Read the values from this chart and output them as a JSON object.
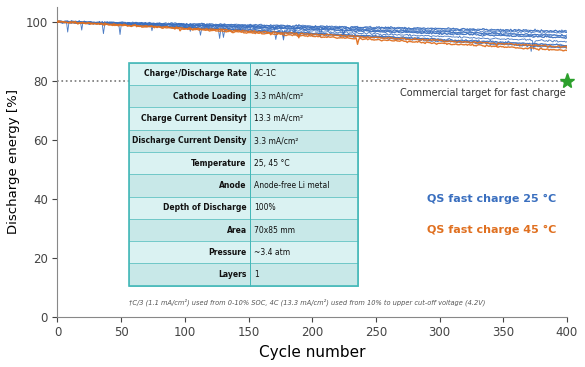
{
  "xlabel": "Cycle number",
  "ylabel": "Discharge energy [%]",
  "xlim": [
    0,
    400
  ],
  "ylim": [
    0,
    105
  ],
  "yticks": [
    0,
    20,
    40,
    60,
    80,
    100
  ],
  "xticks": [
    0,
    50,
    100,
    150,
    200,
    250,
    300,
    350,
    400
  ],
  "hline_y": 80,
  "hline_color": "#777777",
  "star_x": 400,
  "star_y": 80,
  "star_color": "#2ca02c",
  "annotation_text": "Commercial target for fast charge",
  "blue_color": "#3a6fbf",
  "orange_color": "#e07020",
  "legend_blue": "QS fast charge 25 °C",
  "legend_orange": "QS fast charge 45 °C",
  "footnote": "†C/3 (1.1 mA/cm²) used from 0-10% SOC, 4C (13.3 mA/cm²) used from 10% to upper cut-off voltage (4.2V)",
  "table_rows": [
    [
      "Charge¹/Discharge Rate",
      "4C-1C"
    ],
    [
      "Cathode Loading",
      "3.3 mAh/cm²"
    ],
    [
      "Charge Current Density†",
      "13.3 mA/cm²"
    ],
    [
      "Discharge Current Density",
      "3.3 mA/cm²"
    ],
    [
      "Temperature",
      "25, 45 °C"
    ],
    [
      "Anode",
      "Anode-free Li metal"
    ],
    [
      "Depth of Discharge",
      "100%"
    ],
    [
      "Area",
      "70x85 mm"
    ],
    [
      "Pressure",
      "~3.4 atm"
    ],
    [
      "Layers",
      "1"
    ]
  ],
  "bg_color": "#ffffff",
  "table_border_color": "#44b8b8",
  "table_row_even": "#c8e8e8",
  "table_row_odd": "#daf2f2"
}
